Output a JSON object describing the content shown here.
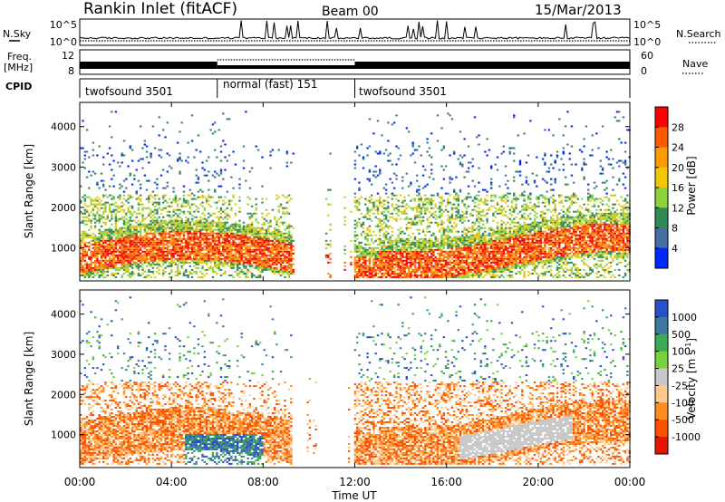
{
  "header": {
    "station": "Rankin Inlet (fitACF)",
    "beam": "Beam 00",
    "date": "15/Mar/2013"
  },
  "side_labels": {
    "nsky": "N.Sky",
    "freq_line1": "Freq.",
    "freq_line2": "[MHz]",
    "cpid": "CPID",
    "nsearch": "N.Search",
    "nave": "Nave"
  },
  "chart_data": [
    {
      "type": "line",
      "panel": "noise",
      "left_axis_ticks": [
        "10^5",
        "10^0"
      ],
      "right_axis_ticks": [
        "10^5",
        "10^0"
      ]
    },
    {
      "type": "line",
      "panel": "frequency",
      "left_axis_ticks": [
        "12",
        "8"
      ],
      "right_axis_ticks": [
        "60",
        "0"
      ]
    },
    {
      "type": "table",
      "panel": "cpid",
      "segments": [
        {
          "label": "twofsound 3501",
          "start_hour": 0,
          "end_hour": 6
        },
        {
          "label": "normal (fast) 151",
          "start_hour": 6,
          "end_hour": 12
        },
        {
          "label": "twofsound 3501",
          "start_hour": 12,
          "end_hour": 24
        }
      ]
    },
    {
      "type": "heatmap",
      "panel": "power",
      "ylabel": "Slant Range [km]",
      "ylim": [
        180,
        4600
      ],
      "yticks": [
        1000,
        2000,
        3000,
        4000
      ],
      "xlim": [
        0,
        24
      ],
      "colorbar": {
        "label": "Power [dB]",
        "ticks": [
          28,
          24,
          20,
          16,
          12,
          8,
          4
        ],
        "colors": [
          "#ff0000",
          "#ff5a00",
          "#ff9b00",
          "#f0c800",
          "#8cd23c",
          "#2e8b57",
          "#466ea0",
          "#0028ff"
        ]
      }
    },
    {
      "type": "heatmap",
      "panel": "velocity",
      "ylabel": "Slant Range [km]",
      "ylim": [
        180,
        4600
      ],
      "yticks": [
        1000,
        2000,
        3000,
        4000
      ],
      "xlim": [
        0,
        24
      ],
      "xticks": [
        "00:00",
        "04:00",
        "08:00",
        "12:00",
        "16:00",
        "20:00",
        "00:00"
      ],
      "xlabel": "Time UT",
      "colorbar": {
        "label_main": "Velocity  [m s",
        "label_sup": "-1",
        "label_end": "]",
        "ticks": [
          1000,
          500,
          100,
          25,
          -25,
          -100,
          -500,
          -1000
        ],
        "colors": [
          "#2850c8",
          "#3c78a0",
          "#3caa50",
          "#78d23c",
          "#c8c8c8",
          "#ffc88c",
          "#ff8c1e",
          "#ff5000",
          "#e61400"
        ]
      }
    }
  ]
}
